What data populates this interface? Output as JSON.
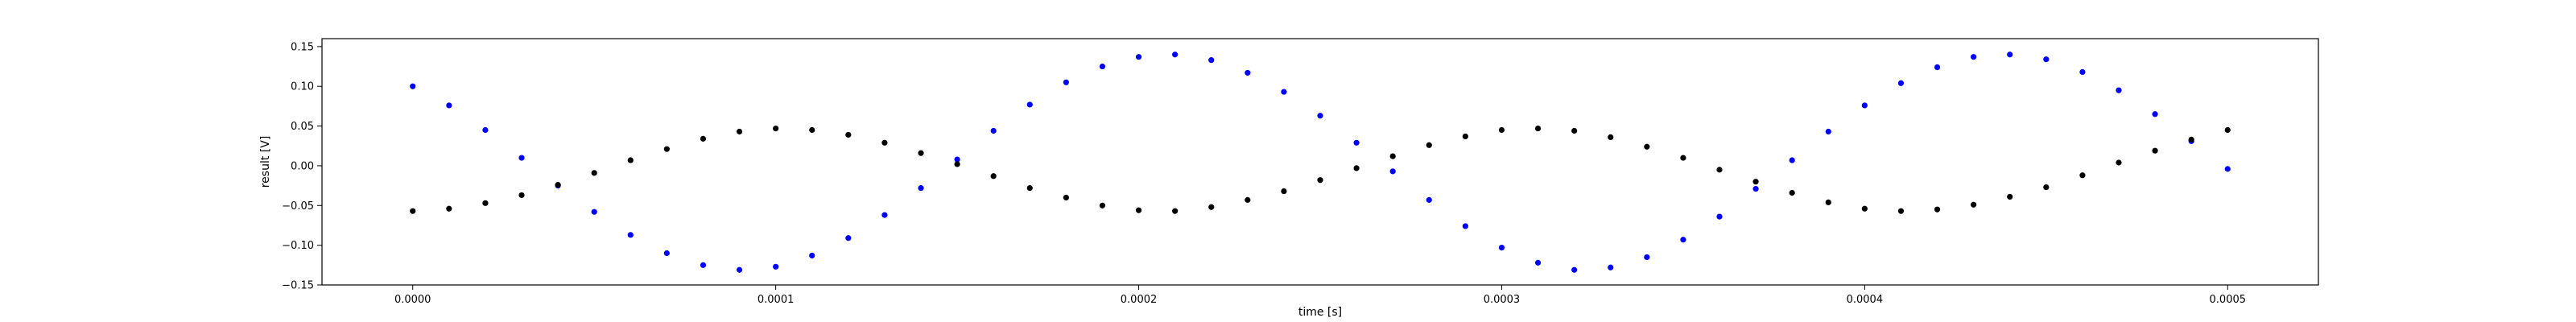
{
  "chart_data": {
    "type": "scatter",
    "title": "",
    "xlabel": "time [s]",
    "ylabel": "result [V]",
    "xlim": [
      -2.5e-05,
      0.000525
    ],
    "ylim": [
      -0.15,
      0.16
    ],
    "grid": false,
    "x_ticks": [
      0.0,
      0.0001,
      0.0002,
      0.0003,
      0.0004,
      0.0005
    ],
    "x_tick_labels": [
      "0.0000",
      "0.0001",
      "0.0002",
      "0.0003",
      "0.0004",
      "0.0005"
    ],
    "y_ticks": [
      -0.15,
      -0.1,
      -0.05,
      0.0,
      0.05,
      0.1,
      0.15
    ],
    "y_tick_labels": [
      "−0.15",
      "−0.10",
      "−0.05",
      "0.00",
      "0.05",
      "0.10",
      "0.15"
    ],
    "series": [
      {
        "color": "#0000ff",
        "x": [
          0.0,
          1e-05,
          2e-05,
          3e-05,
          4e-05,
          5e-05,
          6e-05,
          7e-05,
          8e-05,
          9e-05,
          0.0001,
          0.00011,
          0.00012,
          0.00013,
          0.00014,
          0.00015,
          0.00016,
          0.00017,
          0.00018,
          0.00019,
          0.0002,
          0.00021,
          0.00022,
          0.00023,
          0.00024,
          0.00025,
          0.00026,
          0.00027,
          0.00028,
          0.00029,
          0.0003,
          0.00031,
          0.00032,
          0.00033,
          0.00034,
          0.00035,
          0.00036,
          0.00037,
          0.00038,
          0.00039,
          0.0004,
          0.00041,
          0.00042,
          0.00043,
          0.00044,
          0.00045,
          0.00046,
          0.00047,
          0.00048,
          0.00049,
          0.0005
        ],
        "y": [
          0.1,
          0.076,
          0.045,
          0.01,
          -0.025,
          -0.058,
          -0.087,
          -0.11,
          -0.125,
          -0.131,
          -0.127,
          -0.113,
          -0.091,
          -0.062,
          -0.028,
          0.008,
          0.044,
          0.077,
          0.105,
          0.125,
          0.137,
          0.14,
          0.133,
          0.117,
          0.093,
          0.063,
          0.029,
          -0.007,
          -0.043,
          -0.076,
          -0.103,
          -0.122,
          -0.131,
          -0.128,
          -0.115,
          -0.093,
          -0.064,
          -0.029,
          0.007,
          0.043,
          0.076,
          0.104,
          0.124,
          0.137,
          0.14,
          0.134,
          0.118,
          0.095,
          0.065,
          0.031,
          -0.004
        ]
      },
      {
        "color": "#000000",
        "x": [
          0.0,
          1e-05,
          2e-05,
          3e-05,
          4e-05,
          5e-05,
          6e-05,
          7e-05,
          8e-05,
          9e-05,
          0.0001,
          0.00011,
          0.00012,
          0.00013,
          0.00014,
          0.00015,
          0.00016,
          0.00017,
          0.00018,
          0.00019,
          0.0002,
          0.00021,
          0.00022,
          0.00023,
          0.00024,
          0.00025,
          0.00026,
          0.00027,
          0.00028,
          0.00029,
          0.0003,
          0.00031,
          0.00032,
          0.00033,
          0.00034,
          0.00035,
          0.00036,
          0.00037,
          0.00038,
          0.00039,
          0.0004,
          0.00041,
          0.00042,
          0.00043,
          0.00044,
          0.00045,
          0.00046,
          0.00047,
          0.00048,
          0.00049,
          0.0005
        ],
        "y": [
          -0.057,
          -0.054,
          -0.047,
          -0.037,
          -0.024,
          -0.009,
          0.007,
          0.021,
          0.034,
          0.043,
          0.047,
          0.045,
          0.039,
          0.029,
          0.016,
          0.002,
          -0.013,
          -0.028,
          -0.04,
          -0.05,
          -0.056,
          -0.057,
          -0.052,
          -0.043,
          -0.032,
          -0.018,
          -0.003,
          0.012,
          0.026,
          0.037,
          0.045,
          0.047,
          0.044,
          0.036,
          0.024,
          0.01,
          -0.005,
          -0.02,
          -0.034,
          -0.046,
          -0.054,
          -0.057,
          -0.055,
          -0.049,
          -0.039,
          -0.027,
          -0.012,
          0.004,
          0.019,
          0.033,
          0.045
        ]
      }
    ]
  }
}
